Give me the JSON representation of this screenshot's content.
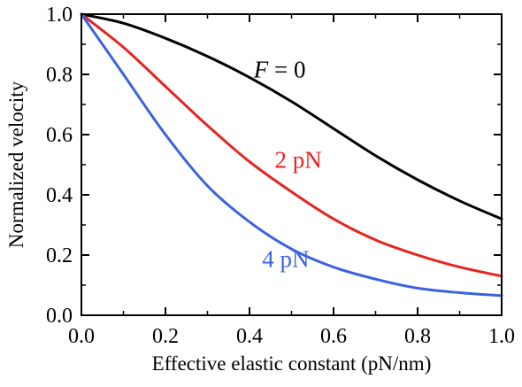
{
  "chart_data": {
    "type": "line",
    "title": "",
    "xlabel": "Effective elastic constant (pN/nm)",
    "ylabel": "Normalized velocity",
    "xlim": [
      0,
      1.0
    ],
    "ylim": [
      0,
      1.0
    ],
    "xticks": [
      "0.0",
      "0.2",
      "0.4",
      "0.6",
      "0.8",
      "1.0"
    ],
    "yticks": [
      "0.0",
      "0.2",
      "0.4",
      "0.6",
      "0.8",
      "1.0"
    ],
    "grid": false,
    "legend": "none",
    "series": [
      {
        "label": "F = 0",
        "label_prefix": "F",
        "label_suffix": " = 0",
        "color": "#000000",
        "x": [
          0,
          0.1,
          0.2,
          0.3,
          0.4,
          0.5,
          0.6,
          0.7,
          0.8,
          0.9,
          1.0
        ],
        "y": [
          1.0,
          0.97,
          0.92,
          0.86,
          0.79,
          0.71,
          0.62,
          0.53,
          0.45,
          0.38,
          0.32
        ]
      },
      {
        "label": "2 pN",
        "color": "#e8231f",
        "x": [
          0,
          0.1,
          0.2,
          0.3,
          0.4,
          0.5,
          0.6,
          0.7,
          0.8,
          0.9,
          1.0
        ],
        "y": [
          1.0,
          0.89,
          0.76,
          0.63,
          0.51,
          0.41,
          0.32,
          0.25,
          0.2,
          0.16,
          0.13
        ]
      },
      {
        "label": "4 pN",
        "color": "#3b63e0",
        "x": [
          0,
          0.1,
          0.2,
          0.3,
          0.4,
          0.5,
          0.6,
          0.7,
          0.8,
          0.9,
          1.0
        ],
        "y": [
          1.0,
          0.8,
          0.6,
          0.43,
          0.31,
          0.22,
          0.16,
          0.12,
          0.09,
          0.075,
          0.065
        ]
      }
    ],
    "annotations": [
      {
        "text_prefix": "F",
        "text_suffix": " = 0",
        "x": 0.41,
        "y": 0.79,
        "color": "#000000"
      },
      {
        "text": "2 pN",
        "x": 0.46,
        "y": 0.49,
        "color": "#e8231f"
      },
      {
        "text": "4 pN",
        "x": 0.43,
        "y": 0.16,
        "color": "#3b63e0"
      }
    ]
  }
}
